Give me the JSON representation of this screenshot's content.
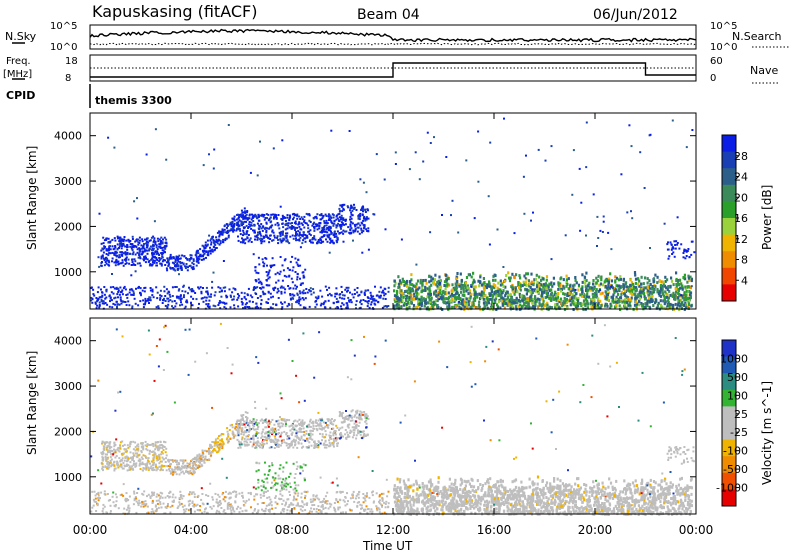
{
  "header": {
    "station": "Kapuskasing (fitACF)",
    "beam": "Beam 04",
    "date": "06/Jun/2012"
  },
  "top_panels": {
    "nsky_label": "N.Sky",
    "nsky_ticks": [
      "10^5",
      "10^0"
    ],
    "nsearch_label": "N.Search",
    "nsearch_ticks": [
      "10^5",
      "10^0"
    ],
    "freq_label": "Freq.",
    "freq_unit": "[MHz]",
    "freq_ticks": [
      "18",
      "8"
    ],
    "nave_label": "Nave",
    "nave_ticks": [
      "60",
      "0"
    ],
    "cpid_label": "CPID",
    "cpid_value": "themis 3300"
  },
  "colors": {
    "power_scale": [
      "#0a1ee6",
      "#1a3fb4",
      "#2b5f8a",
      "#3a8a5a",
      "#2aa02a",
      "#9ad23c",
      "#f0b400",
      "#f08c00",
      "#f04600",
      "#e60000"
    ],
    "velocity_scale": [
      "#1e32c8",
      "#1f5ab4",
      "#2b8c82",
      "#32b432",
      "#bebebe",
      "#bebebe",
      "#f0b400",
      "#f08c00",
      "#f05000",
      "#e60000"
    ],
    "ground_scatter": "#bebebe"
  },
  "chart_data": [
    {
      "type": "heatmap",
      "title": "",
      "xlabel": "",
      "ylabel": "Slant Range [km]",
      "colorbar_label": "Power [dB]",
      "colorbar_ticks": [
        "28",
        "24",
        "20",
        "16",
        "12",
        "8",
        "4"
      ],
      "colorbar_range": [
        0,
        30
      ],
      "xlim": [
        0,
        24
      ],
      "ylim": [
        180,
        4500
      ],
      "y_ticks": [
        "1000",
        "2000",
        "3000",
        "4000"
      ],
      "y_tick_values": [
        1000,
        2000,
        3000,
        4000
      ],
      "regions": [
        {
          "name": "evening_band",
          "x": [
            0.5,
            3.0
          ],
          "y": [
            1100,
            1800
          ],
          "level": 0.15
        },
        {
          "name": "arc_band",
          "x": [
            5.0,
            10.9
          ],
          "y": [
            1600,
            2400
          ],
          "level": 0.12
        },
        {
          "name": "low_range_scatter",
          "x": [
            0.0,
            11.8
          ],
          "y": [
            200,
            700
          ],
          "level": 0.1
        },
        {
          "name": "dayside_band",
          "x": [
            12.0,
            23.8
          ],
          "y": [
            200,
            850
          ],
          "level": 0.55
        }
      ]
    },
    {
      "type": "heatmap",
      "title": "",
      "xlabel": "Time UT",
      "ylabel": "Slant Range [km]",
      "colorbar_label": "Velocity [m s^-1]",
      "colorbar_ticks": [
        "1000",
        "500",
        "100",
        "25",
        "-25",
        "-100",
        "-500",
        "-1000"
      ],
      "colorbar_range": [
        -1000,
        1000
      ],
      "xlim": [
        0,
        24
      ],
      "ylim": [
        180,
        4500
      ],
      "x_ticks": [
        "00:00",
        "04:00",
        "08:00",
        "12:00",
        "16:00",
        "20:00",
        "00:00"
      ],
      "x_tick_values": [
        0,
        4,
        8,
        12,
        16,
        20,
        24
      ],
      "y_ticks": [
        "1000",
        "2000",
        "3000",
        "4000"
      ],
      "y_tick_values": [
        1000,
        2000,
        3000,
        4000
      ]
    }
  ]
}
